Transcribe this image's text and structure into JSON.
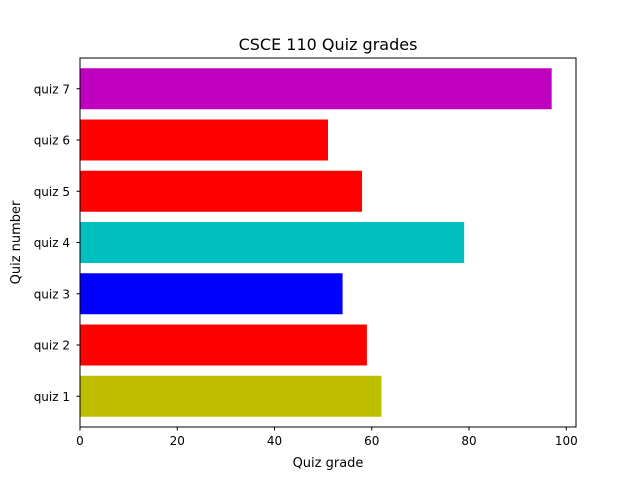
{
  "chart_data": {
    "type": "bar",
    "orientation": "horizontal",
    "title": "CSCE 110 Quiz grades",
    "xlabel": "Quiz grade",
    "ylabel": "Quiz number",
    "categories": [
      "quiz 1",
      "quiz 2",
      "quiz 3",
      "quiz 4",
      "quiz 5",
      "quiz 6",
      "quiz 7"
    ],
    "values": [
      62,
      59,
      54,
      79,
      58,
      51,
      97
    ],
    "colors": [
      "#bfbf00",
      "#ff0000",
      "#0000ff",
      "#00bfbf",
      "#ff0000",
      "#ff0000",
      "#bf00bf"
    ],
    "xlim": [
      0,
      102
    ],
    "xticks": [
      0,
      20,
      40,
      60,
      80,
      100
    ],
    "grid": false,
    "legend": "none"
  }
}
